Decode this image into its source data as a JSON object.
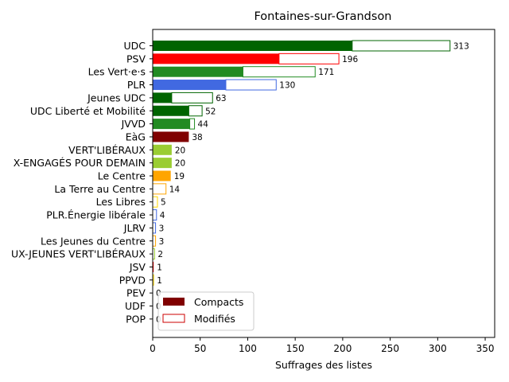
{
  "chart_data": {
    "type": "bar",
    "orientation": "horizontal",
    "stacked": true,
    "title": "Fontaines-sur-Grandson",
    "xlabel": "Suffrages des listes",
    "ylabel": "",
    "xlim": [
      0,
      360
    ],
    "xticks": [
      0,
      50,
      100,
      150,
      200,
      250,
      300,
      350
    ],
    "grid": false,
    "legend": {
      "placement": "lower-left",
      "entries": [
        {
          "label": "Compacts",
          "style": "filled",
          "color": "#800000"
        },
        {
          "label": "Modifiés",
          "style": "outline",
          "color": "#cc0000"
        }
      ]
    },
    "categories": [
      "UDC",
      "PSV",
      "Les Vert·e·s",
      "PLR",
      "Jeunes UDC",
      "UDC Liberté et Mobilité",
      "JVVD",
      "EàG",
      "VERT'LIBÉRAUX",
      "X-ENGAGÉS POUR DEMAIN",
      "Le Centre",
      "La Terre au Centre",
      "Les Libres",
      "PLR.Énergie libérale",
      "JLRV",
      "Les Jeunes du Centre",
      "UX-JEUNES VERT'LIBÉRAUX",
      "JSV",
      "PPVD",
      "PEV",
      "UDF",
      "POP"
    ],
    "series": [
      {
        "name": "Compacts",
        "values": [
          210,
          133,
          95,
          77,
          20,
          38,
          39,
          38,
          20,
          20,
          19,
          0,
          0,
          0,
          0,
          0,
          0,
          1,
          0,
          0,
          0,
          0
        ]
      },
      {
        "name": "Modifiés",
        "values": [
          103,
          63,
          76,
          53,
          43,
          14,
          5,
          0,
          0,
          0,
          0,
          14,
          5,
          4,
          3,
          3,
          2,
          0,
          1,
          0,
          0,
          0
        ]
      }
    ],
    "totals": [
      313,
      196,
      171,
      130,
      63,
      52,
      44,
      38,
      20,
      20,
      19,
      14,
      5,
      4,
      3,
      3,
      2,
      1,
      1,
      0,
      0,
      0
    ],
    "colors": [
      "#006400",
      "#ff0000",
      "#228b22",
      "#4169e1",
      "#006400",
      "#006400",
      "#228b22",
      "#800000",
      "#9acd32",
      "#9acd32",
      "#ffa500",
      "#ffa500",
      "#ffd700",
      "#4169e1",
      "#4169e1",
      "#ffa500",
      "#9acd32",
      "#ff0000",
      "#ffd700",
      "#ffd700",
      "#006400",
      "#800000"
    ]
  }
}
